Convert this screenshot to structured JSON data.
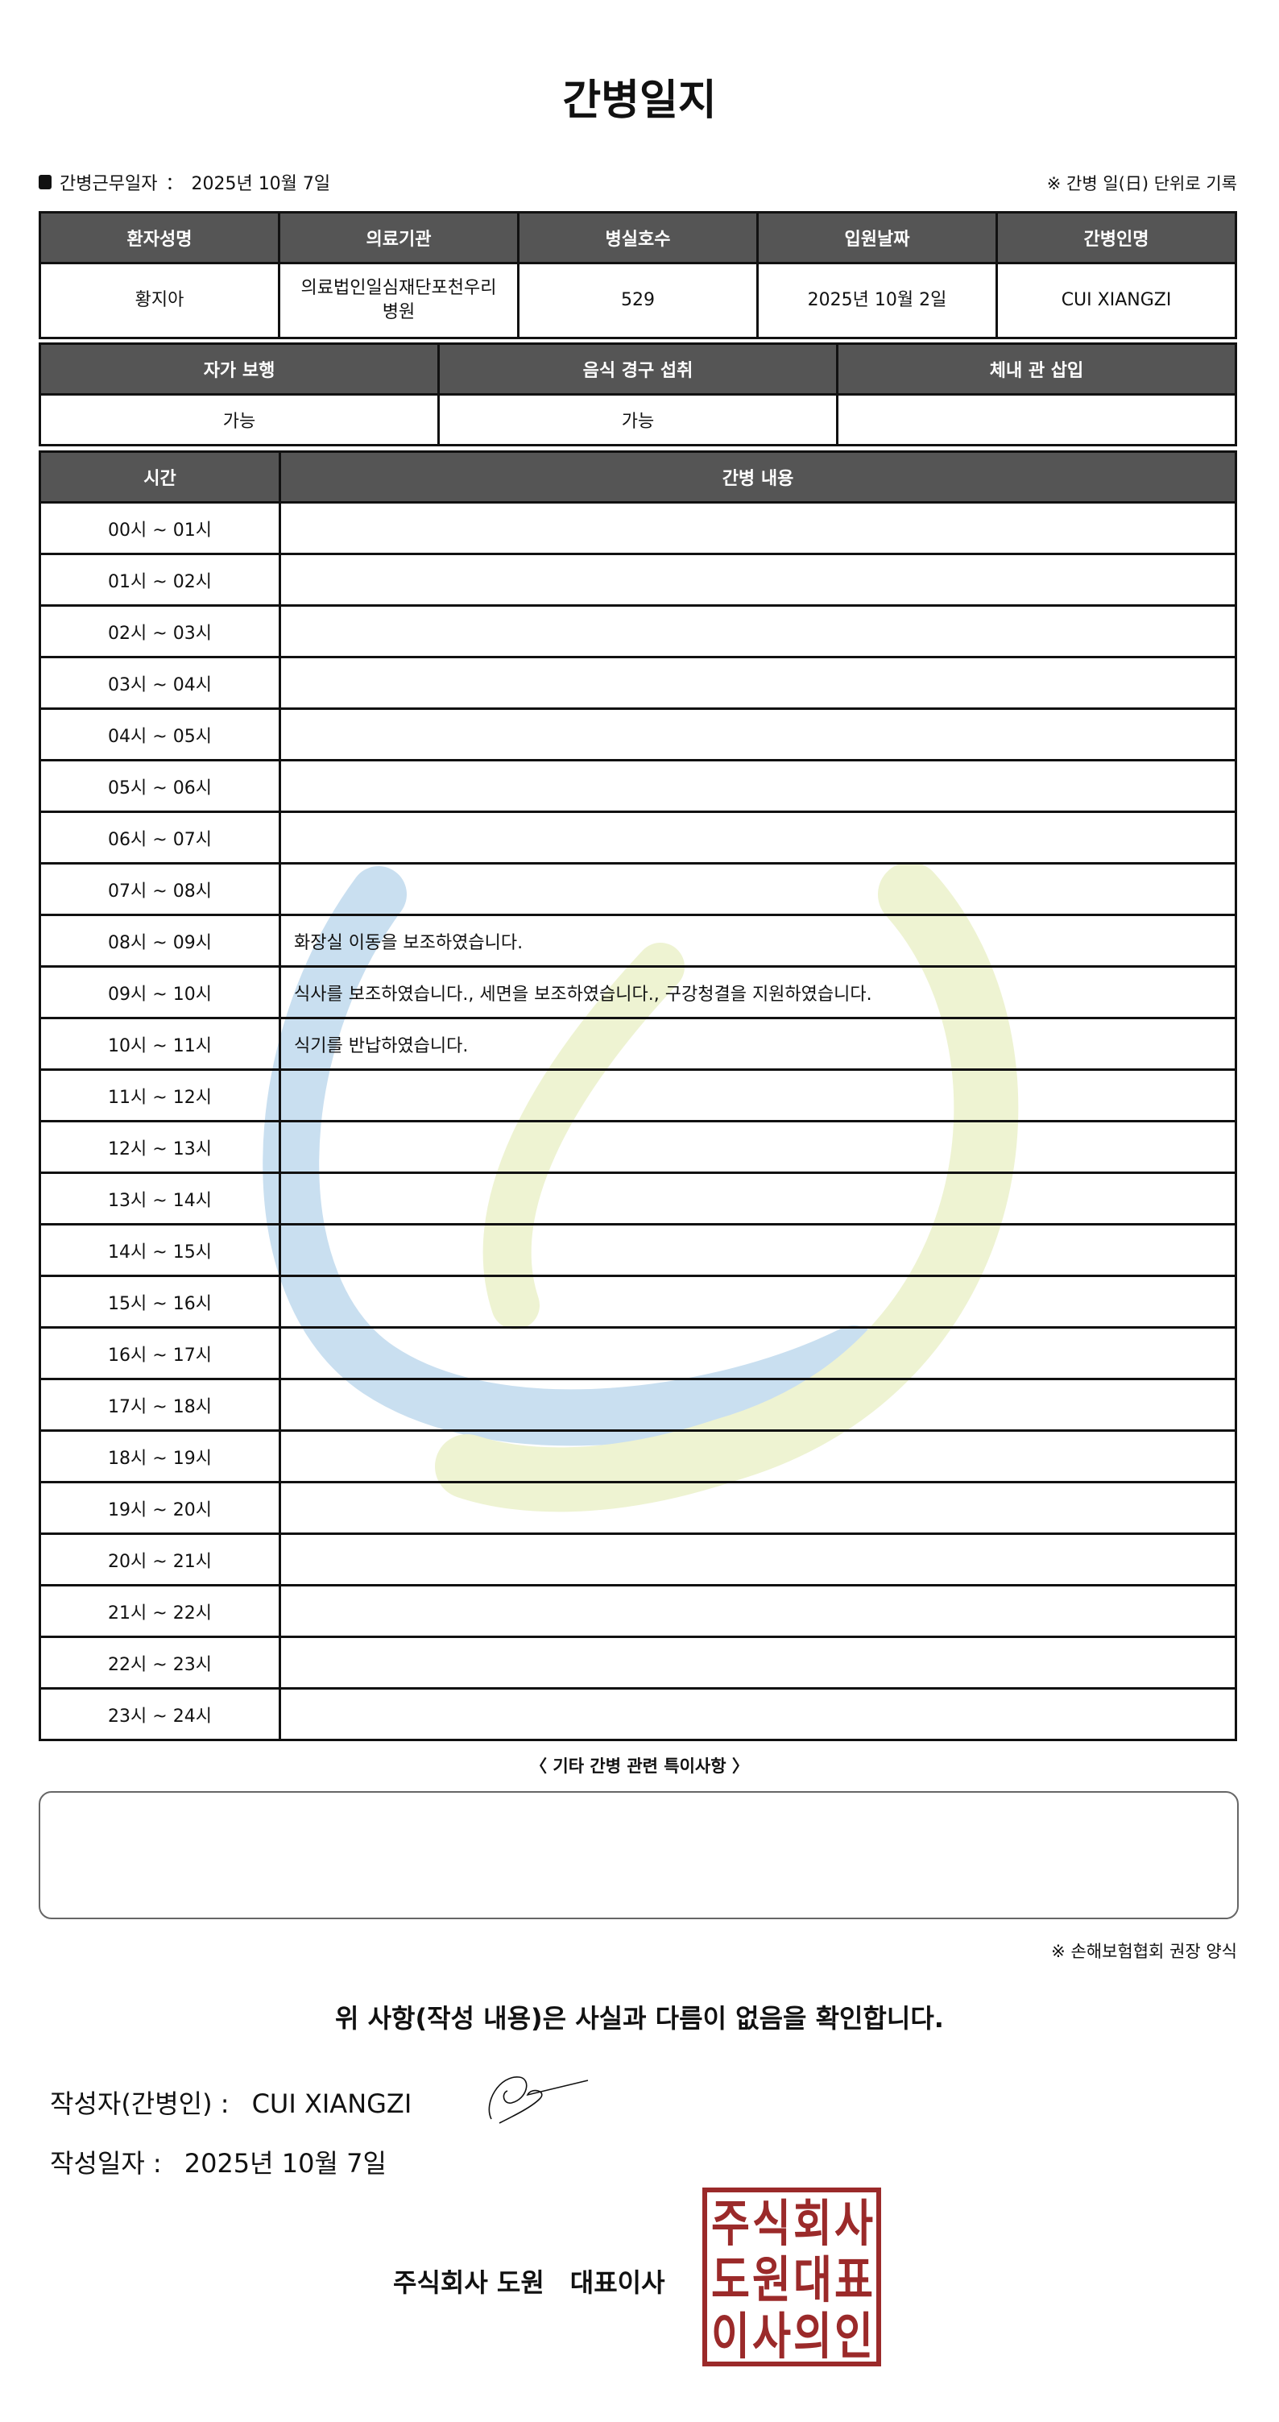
{
  "title": "간병일지",
  "work_date_label": "간병근무일자",
  "work_date_sep": "：",
  "work_date": "2025년 10월 7일",
  "record_note": "※ 간병 일(日) 단위로 기록",
  "patient_table": {
    "headers": [
      "환자성명",
      "의료기관",
      "병실호수",
      "입원날짜",
      "간병인명"
    ],
    "values": [
      "황지아",
      "의료법인일심재단포천우리병원",
      "529",
      "2025년 10월 2일",
      "CUI XIANGZI"
    ]
  },
  "status_table": {
    "headers": [
      "자가 보행",
      "음식 경구 섭취",
      "체내 관 삽입"
    ],
    "values": [
      "가능",
      "가능",
      ""
    ]
  },
  "log_table": {
    "headers": [
      "시간",
      "간병 내용"
    ],
    "rows": [
      {
        "time": "00시 ~ 01시",
        "content": ""
      },
      {
        "time": "01시 ~ 02시",
        "content": ""
      },
      {
        "time": "02시 ~ 03시",
        "content": ""
      },
      {
        "time": "03시 ~ 04시",
        "content": ""
      },
      {
        "time": "04시 ~ 05시",
        "content": ""
      },
      {
        "time": "05시 ~ 06시",
        "content": ""
      },
      {
        "time": "06시 ~ 07시",
        "content": ""
      },
      {
        "time": "07시 ~ 08시",
        "content": ""
      },
      {
        "time": "08시 ~ 09시",
        "content": "화장실 이동을 보조하였습니다."
      },
      {
        "time": "09시 ~ 10시",
        "content": "식사를 보조하였습니다., 세면을 보조하였습니다., 구강청결을 지원하였습니다."
      },
      {
        "time": "10시 ~ 11시",
        "content": "식기를 반납하였습니다."
      },
      {
        "time": "11시 ~ 12시",
        "content": ""
      },
      {
        "time": "12시 ~ 13시",
        "content": ""
      },
      {
        "time": "13시 ~ 14시",
        "content": ""
      },
      {
        "time": "14시 ~ 15시",
        "content": ""
      },
      {
        "time": "15시 ~ 16시",
        "content": ""
      },
      {
        "time": "16시 ~ 17시",
        "content": ""
      },
      {
        "time": "17시 ~ 18시",
        "content": ""
      },
      {
        "time": "18시 ~ 19시",
        "content": ""
      },
      {
        "time": "19시 ~ 20시",
        "content": ""
      },
      {
        "time": "20시 ~ 21시",
        "content": ""
      },
      {
        "time": "21시 ~ 22시",
        "content": ""
      },
      {
        "time": "22시 ~ 23시",
        "content": ""
      },
      {
        "time": "23시 ~ 24시",
        "content": ""
      }
    ]
  },
  "notes_heading": "〈 기타 간병 관련 특이사항 〉",
  "notes": "",
  "footnote": "※ 손해보험협회 권장 양식",
  "confirmation": "위 사항(작성 내용)은 사실과 다름이 없음을 확인합니다.",
  "writer_label": "작성자(간병인) :",
  "writer": "CUI XIANGZI",
  "date_label": "작성일자 :",
  "date": "2025년 10월 7일",
  "company": "주식회사 도원　대표이사",
  "seal_text": "주식회사도원대표이사의인",
  "colors": {
    "header_bg": "#555555",
    "seal": "#9b2a2a",
    "watermark_blue": "#c9dff0",
    "watermark_green": "#eef3d2"
  }
}
